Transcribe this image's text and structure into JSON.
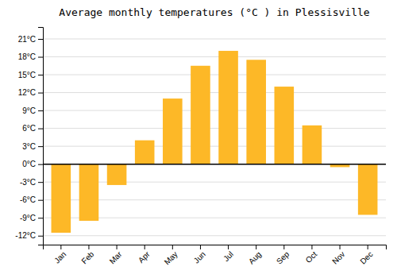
{
  "chart_data": {
    "type": "bar",
    "title": "Average monthly temperatures (°C ) in Plessisville",
    "categories": [
      "Jan",
      "Feb",
      "Mar",
      "Apr",
      "May",
      "Jun",
      "Jul",
      "Aug",
      "Sep",
      "Oct",
      "Nov",
      "Dec"
    ],
    "values": [
      -11.5,
      -9.5,
      -3.5,
      4.0,
      11.0,
      16.5,
      19.0,
      17.5,
      13.0,
      6.5,
      -0.5,
      -8.5
    ],
    "color": "#FDB827",
    "ylim": [
      -13.5,
      23
    ],
    "yticks": [
      {
        "value": -12,
        "label": "-12°C"
      },
      {
        "value": -9,
        "label": "-9°C"
      },
      {
        "value": -6,
        "label": "-6°C"
      },
      {
        "value": -3,
        "label": "-3°C"
      },
      {
        "value": 0,
        "label": "0°C"
      },
      {
        "value": 3,
        "label": "3°C"
      },
      {
        "value": 6,
        "label": "6°C"
      },
      {
        "value": 9,
        "label": "9°C"
      },
      {
        "value": 12,
        "label": "12°C"
      },
      {
        "value": 15,
        "label": "15°C"
      },
      {
        "value": 18,
        "label": "18°C"
      },
      {
        "value": 21,
        "label": "21°C"
      }
    ],
    "grid": true
  }
}
